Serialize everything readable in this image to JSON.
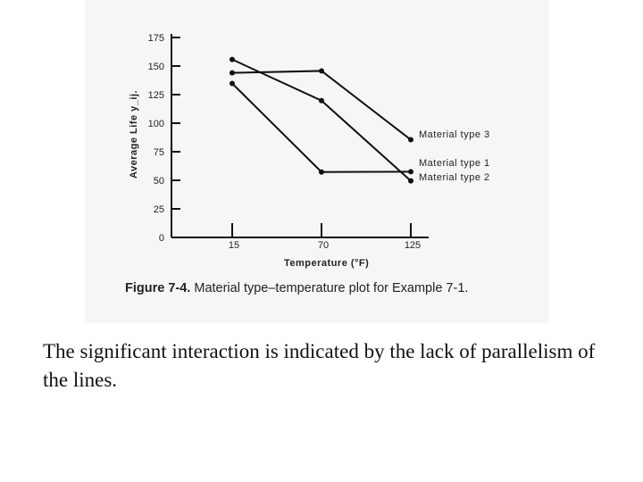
{
  "chart_data": {
    "type": "line",
    "x": [
      15,
      70,
      125
    ],
    "series": [
      {
        "name": "Material type 1",
        "values": [
          134.75,
          57.25,
          57.5
        ]
      },
      {
        "name": "Material type 2",
        "values": [
          155.75,
          119.75,
          49.5
        ]
      },
      {
        "name": "Material type 3",
        "values": [
          144.0,
          145.75,
          85.5
        ]
      }
    ],
    "legend_order": [
      "Material type 3",
      "Material type 1",
      "Material type 2"
    ],
    "xlabel": "Temperature (°F)",
    "ylabel": "Average Life y_ij.",
    "xticks": [
      15,
      70,
      125
    ],
    "yticks": [
      0,
      25,
      50,
      75,
      100,
      125,
      150,
      175
    ],
    "ylim": [
      0,
      175
    ],
    "grid": false,
    "legend_placement": "right"
  },
  "caption": {
    "figure_label": "Figure 7-4.",
    "text": "Material type–temperature plot for Example 7-1."
  },
  "body_text": "The significant interaction is indicated by the lack of parallelism of the lines."
}
